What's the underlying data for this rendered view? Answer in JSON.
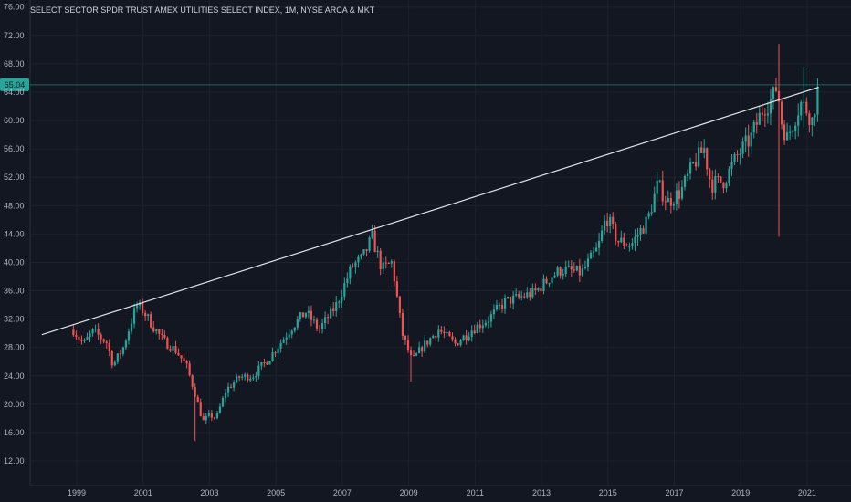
{
  "chart_data": {
    "type": "candlestick",
    "title": "SELECT SECTOR SPDR TRUST AMEX UTILITIES SELECT INDEX, 1M, NYSE ARCA & MKT",
    "ylim": [
      8,
      77
    ],
    "y_ticks": [
      "76.00",
      "72.00",
      "68.00",
      "64.00",
      "60.00",
      "56.00",
      "52.00",
      "48.00",
      "44.00",
      "40.00",
      "36.00",
      "32.00",
      "28.00",
      "24.00",
      "20.00",
      "16.00",
      "12.00"
    ],
    "x_ticks": [
      "1999",
      "2001",
      "2003",
      "2005",
      "2007",
      "2009",
      "2011",
      "2013",
      "2015",
      "2017",
      "2019",
      "2021"
    ],
    "last_price": "65.04",
    "colors": {
      "up": "#26a69a",
      "down": "#ef5350",
      "background": "#131722",
      "grid": "#1e222d",
      "trendline": "#e0e3eb"
    },
    "trendline": {
      "start": {
        "year": 1997.95,
        "price": 29.8
      },
      "end": {
        "year": 2021.35,
        "price": 64.7
      }
    },
    "anchors": [
      [
        1998.9,
        30.5
      ],
      [
        1999.2,
        28.5
      ],
      [
        1999.5,
        30.3
      ],
      [
        1999.9,
        28.7
      ],
      [
        2000.1,
        25.5
      ],
      [
        2000.4,
        28.0
      ],
      [
        2000.8,
        34.0
      ],
      [
        2001.0,
        33.2
      ],
      [
        2001.3,
        31.0
      ],
      [
        2001.6,
        29.0
      ],
      [
        2002.0,
        27.5
      ],
      [
        2002.3,
        25.5
      ],
      [
        2002.6,
        21.0
      ],
      [
        2002.8,
        17.5
      ],
      [
        2003.0,
        18.5
      ],
      [
        2003.2,
        18.0
      ],
      [
        2003.5,
        22.0
      ],
      [
        2003.9,
        23.8
      ],
      [
        2004.3,
        24.0
      ],
      [
        2004.8,
        26.5
      ],
      [
        2005.5,
        31.0
      ],
      [
        2005.9,
        33.0
      ],
      [
        2006.3,
        30.5
      ],
      [
        2006.8,
        33.8
      ],
      [
        2007.3,
        39.5
      ],
      [
        2007.6,
        40.5
      ],
      [
        2007.9,
        43.5
      ],
      [
        2008.2,
        39.0
      ],
      [
        2008.5,
        40.0
      ],
      [
        2008.8,
        30.0
      ],
      [
        2009.1,
        26.0
      ],
      [
        2009.4,
        28.0
      ],
      [
        2009.9,
        30.5
      ],
      [
        2010.4,
        28.5
      ],
      [
        2010.9,
        30.5
      ],
      [
        2011.4,
        32.0
      ],
      [
        2011.9,
        34.5
      ],
      [
        2012.3,
        35.0
      ],
      [
        2012.8,
        35.8
      ],
      [
        2013.3,
        38.0
      ],
      [
        2013.6,
        39.0
      ],
      [
        2014.2,
        38.5
      ],
      [
        2014.7,
        42.0
      ],
      [
        2014.95,
        46.5
      ],
      [
        2015.3,
        43.0
      ],
      [
        2015.7,
        42.5
      ],
      [
        2016.2,
        46.0
      ],
      [
        2016.5,
        51.0
      ],
      [
        2016.8,
        48.5
      ],
      [
        2017.2,
        50.0
      ],
      [
        2017.6,
        54.0
      ],
      [
        2017.9,
        56.0
      ],
      [
        2018.1,
        51.0
      ],
      [
        2018.5,
        51.5
      ],
      [
        2018.9,
        55.0
      ],
      [
        2019.3,
        57.5
      ],
      [
        2019.7,
        62.0
      ],
      [
        2019.95,
        63.0
      ],
      [
        2020.1,
        65.0
      ],
      [
        2020.22,
        60.0
      ],
      [
        2020.4,
        57.5
      ],
      [
        2020.8,
        62.5
      ],
      [
        2021.0,
        61.5
      ],
      [
        2021.15,
        60.0
      ],
      [
        2021.35,
        65.0
      ]
    ],
    "spikes": [
      {
        "year": 2020.13,
        "high": 70.8,
        "low": 43.6
      },
      {
        "year": 2020.9,
        "high": 67.6,
        "low": 59.0
      },
      {
        "year": 2002.6,
        "high": 22.0,
        "low": 14.8
      },
      {
        "year": 2009.1,
        "high": 27.0,
        "low": 23.2
      }
    ]
  }
}
